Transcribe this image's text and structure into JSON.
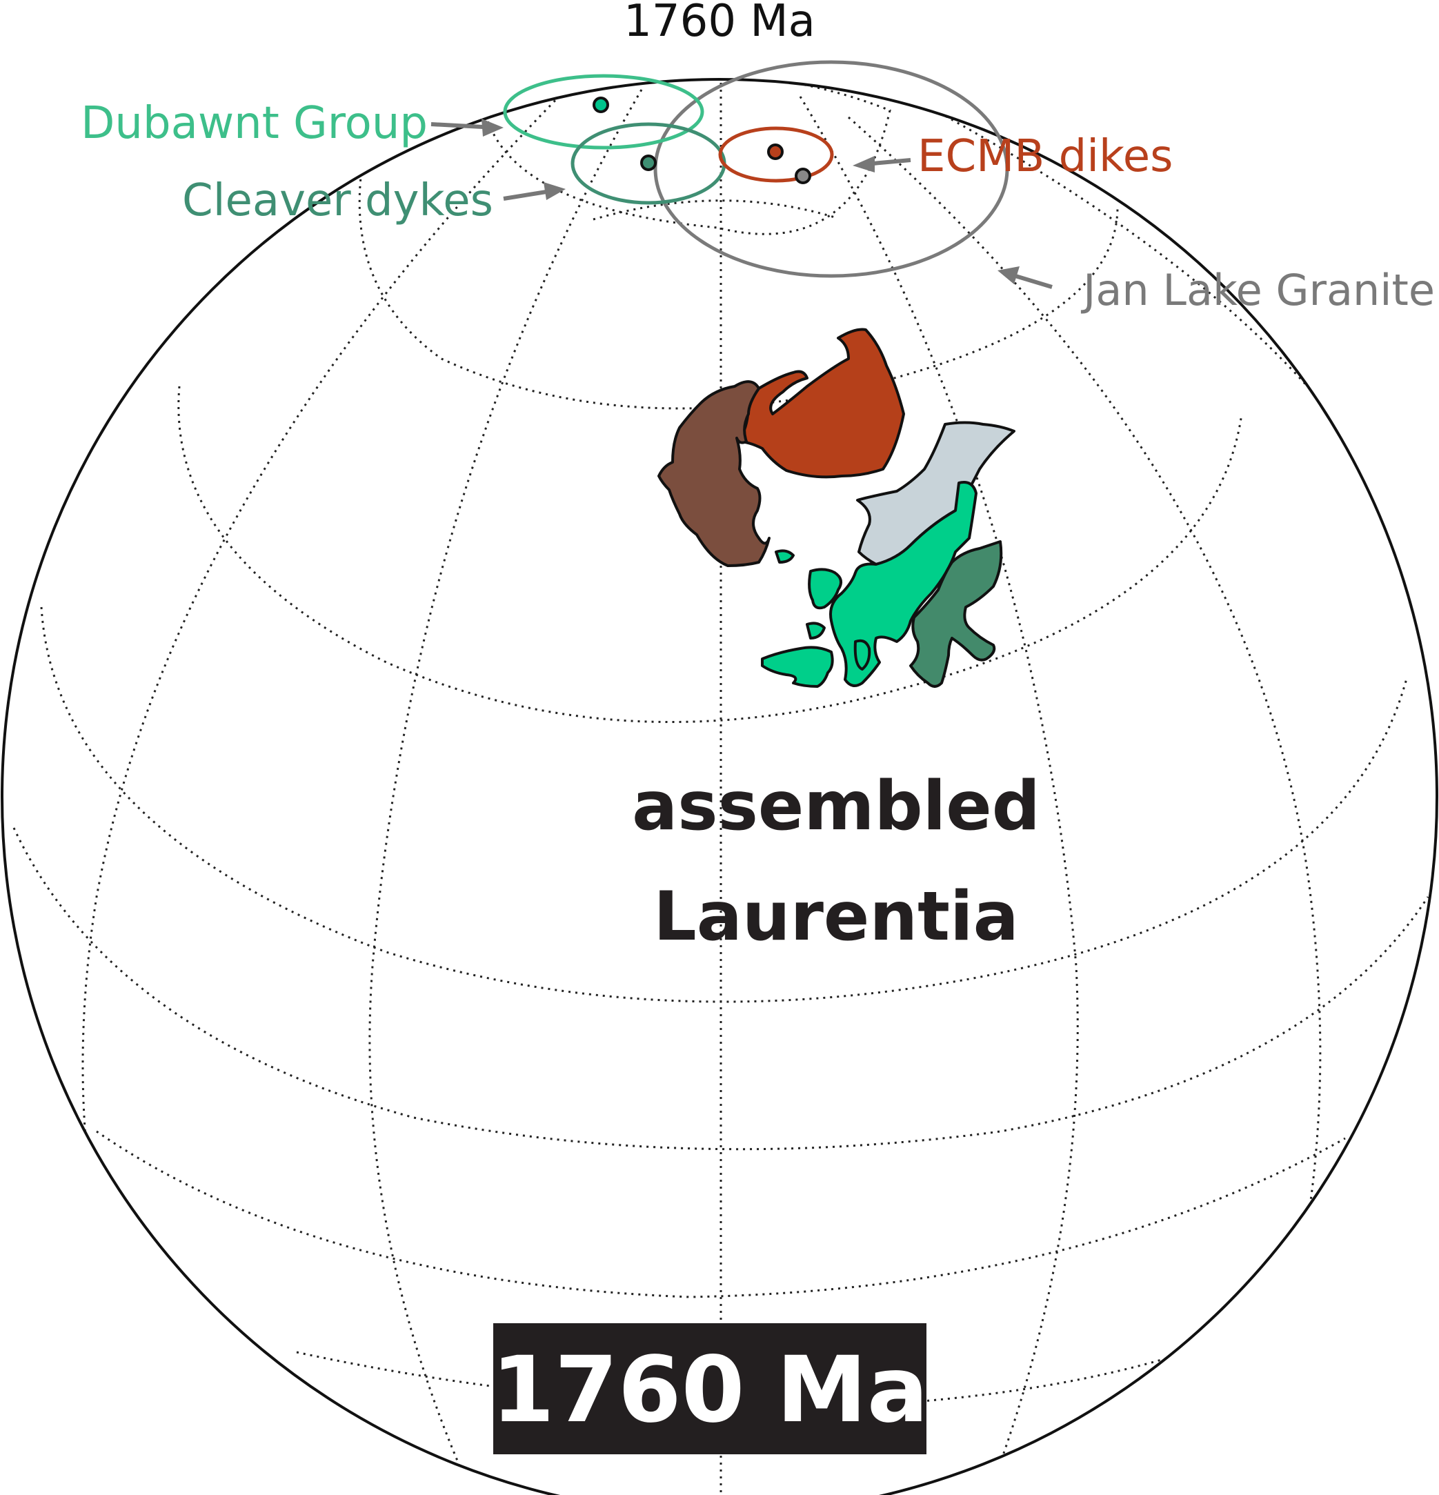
{
  "figure": {
    "top_label": "1760 Ma",
    "badge_label": "1760 Ma",
    "region_label_line1": "assembled",
    "region_label_line2": "Laurentia"
  },
  "poles": [
    {
      "name": "Dubawnt Group",
      "color": "#3dbf8a",
      "dot_color": "#00c48c"
    },
    {
      "name": "Cleaver dykes",
      "color": "#3f8f73",
      "dot_color": "#3f8f73"
    },
    {
      "name": "ECMB dikes",
      "color": "#b8401c",
      "dot_color": "#b8401c"
    },
    {
      "name": "Jan Lake Granite",
      "color": "#7a7a7a",
      "dot_color": "#888888"
    }
  ],
  "cratons": [
    {
      "id": "brown",
      "color": "#7b4e3e"
    },
    {
      "id": "rust",
      "color": "#b5401a"
    },
    {
      "id": "grey-blue",
      "color": "#c8d3d9"
    },
    {
      "id": "bright-green",
      "color": "#00cf8a"
    },
    {
      "id": "dark-green",
      "color": "#438a6b"
    },
    {
      "id": "islands",
      "color": "#00cf8a"
    }
  ],
  "arrow_color": "#777777",
  "badge_color": "#231f20"
}
